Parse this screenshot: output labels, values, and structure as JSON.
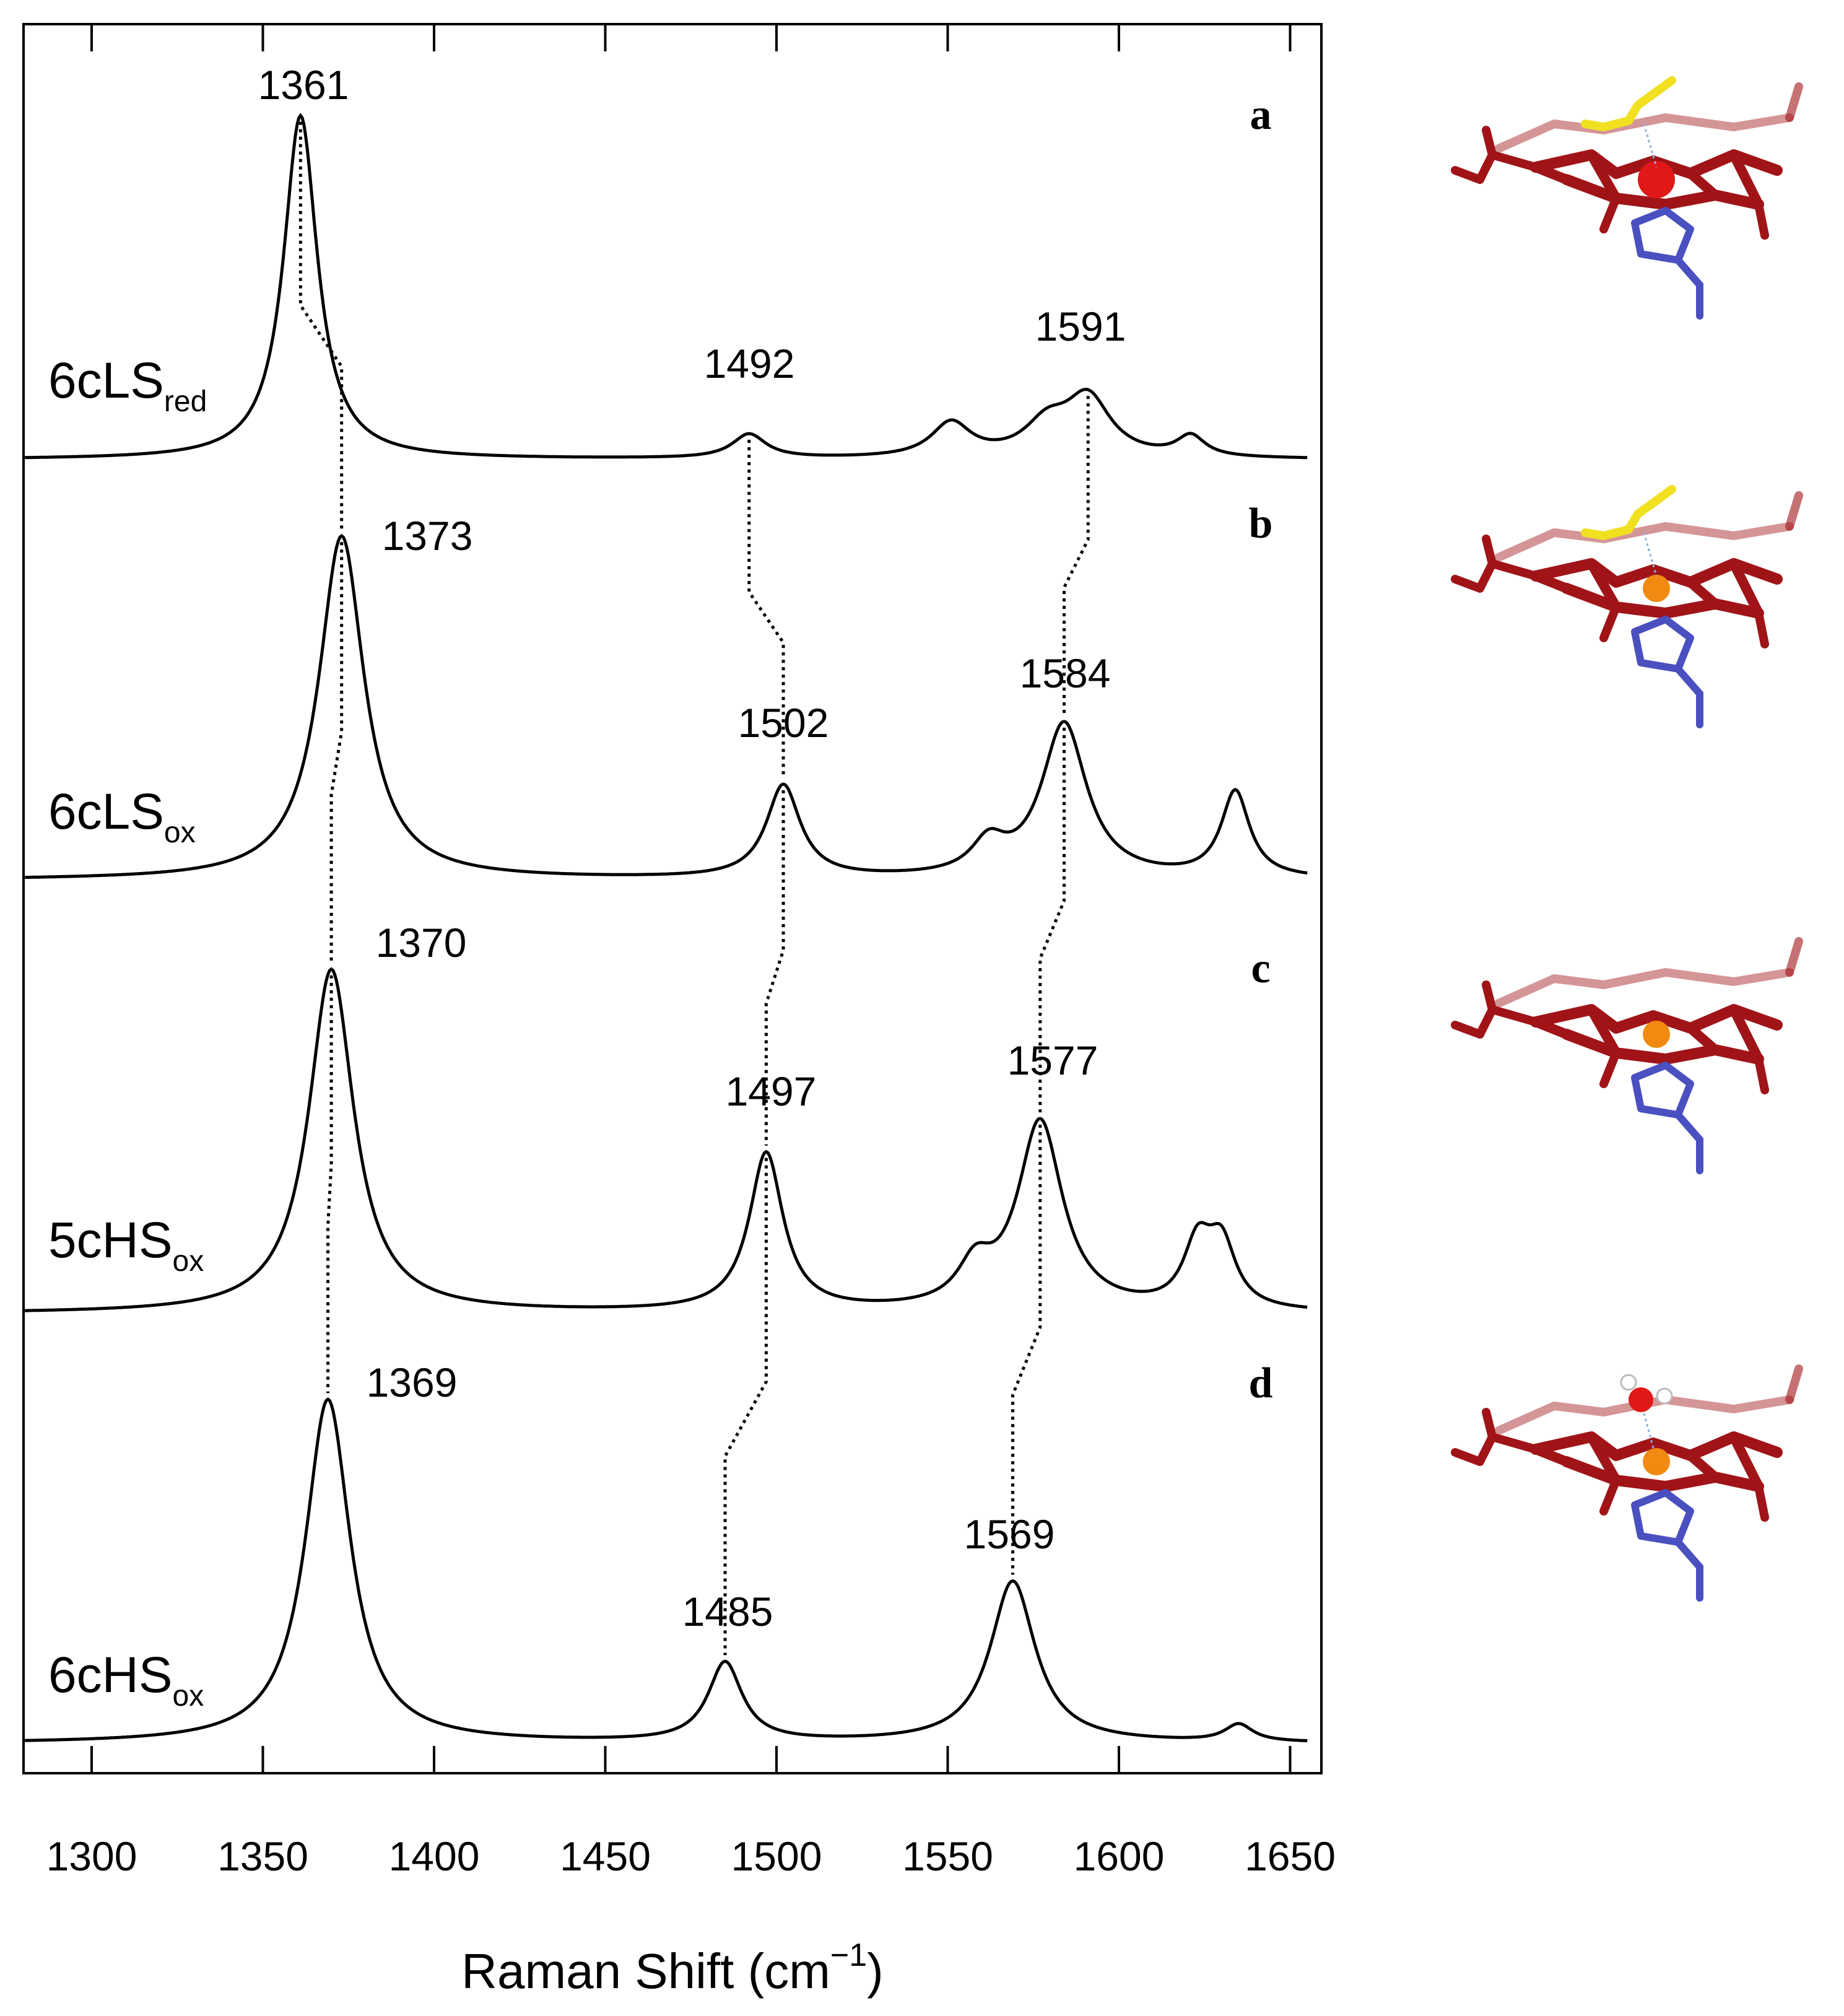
{
  "chart_data": {
    "type": "line",
    "xlabel": "Raman Shift (cm",
    "xlabel_sup": "−1",
    "xlabel_close": ")",
    "xlim": [
      1280,
      1655
    ],
    "xticks": [
      1300,
      1350,
      1400,
      1450,
      1500,
      1550,
      1600,
      1650
    ],
    "grid": false,
    "panels": [
      {
        "letter": "a",
        "label_main": "6cLS",
        "label_sub": "red",
        "peak_labels": [
          1361,
          1492,
          1591
        ],
        "bands": [
          {
            "x": 1361,
            "h": 1.0,
            "w": 6
          },
          {
            "x": 1492,
            "h": 0.07,
            "w": 6
          },
          {
            "x": 1551,
            "h": 0.1,
            "w": 7
          },
          {
            "x": 1579,
            "h": 0.09,
            "w": 8
          },
          {
            "x": 1591,
            "h": 0.17,
            "w": 8
          },
          {
            "x": 1621,
            "h": 0.06,
            "w": 5
          }
        ]
      },
      {
        "letter": "b",
        "label_main": "6cLS",
        "label_sub": "ox",
        "peak_labels": [
          1373,
          1502,
          1584
        ],
        "bands": [
          {
            "x": 1373,
            "h": 1.0,
            "w": 8
          },
          {
            "x": 1502,
            "h": 0.27,
            "w": 6
          },
          {
            "x": 1562,
            "h": 0.09,
            "w": 6
          },
          {
            "x": 1584,
            "h": 0.45,
            "w": 8
          },
          {
            "x": 1634,
            "h": 0.25,
            "w": 5
          }
        ]
      },
      {
        "letter": "c",
        "label_main": "5cHS",
        "label_sub": "ox",
        "peak_labels": [
          1370,
          1497,
          1577
        ],
        "bands": [
          {
            "x": 1370,
            "h": 1.0,
            "w": 8
          },
          {
            "x": 1497,
            "h": 0.46,
            "w": 6
          },
          {
            "x": 1558,
            "h": 0.11,
            "w": 6
          },
          {
            "x": 1577,
            "h": 0.55,
            "w": 8
          },
          {
            "x": 1623,
            "h": 0.18,
            "w": 5
          },
          {
            "x": 1630,
            "h": 0.18,
            "w": 5
          }
        ]
      },
      {
        "letter": "d",
        "label_main": "6cHS",
        "label_sub": "ox",
        "peak_labels": [
          1369,
          1485,
          1569
        ],
        "bands": [
          {
            "x": 1369,
            "h": 1.0,
            "w": 8
          },
          {
            "x": 1485,
            "h": 0.23,
            "w": 6
          },
          {
            "x": 1569,
            "h": 0.47,
            "w": 8
          },
          {
            "x": 1635,
            "h": 0.05,
            "w": 5
          }
        ]
      }
    ]
  },
  "structures": [
    {
      "panel": "a",
      "axial_ligand": "methionine",
      "iron_color": "#e01818"
    },
    {
      "panel": "b",
      "axial_ligand": "methionine",
      "iron_color": "#f08a10"
    },
    {
      "panel": "c",
      "axial_ligand": "none",
      "iron_color": "#f08a10"
    },
    {
      "panel": "d",
      "axial_ligand": "water",
      "iron_color": "#f08a10"
    }
  ],
  "colors": {
    "spectrum": "#000000",
    "heme": "#a01418",
    "histidine": "#4a50c0",
    "methionine": "#f0e020",
    "water_o": "#e01818"
  }
}
